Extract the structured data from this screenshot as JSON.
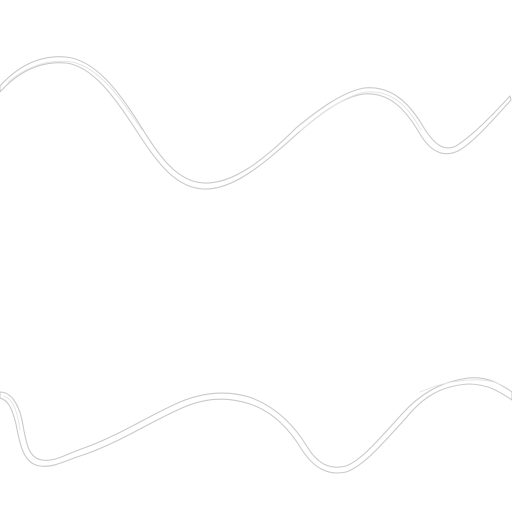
{
  "canvas": {
    "background": "#ffffff",
    "stroke_color": "#c9c9c9",
    "shade_color": "#e3e3e3"
  },
  "decorations": [
    {
      "name": "top-wavy-ribbon",
      "kind": "thin white ribbon with light gray outline"
    },
    {
      "name": "bottom-wavy-ribbon",
      "kind": "thin white ribbon with light gray outline"
    }
  ]
}
